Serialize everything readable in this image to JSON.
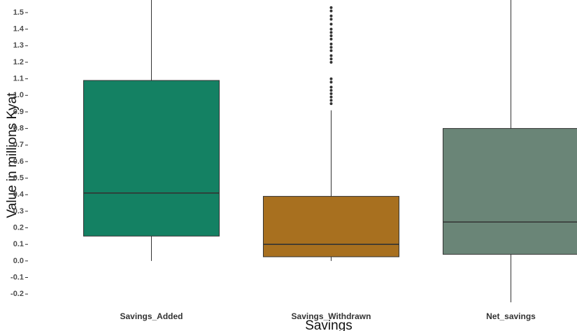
{
  "chart_data": {
    "type": "box",
    "x_label": "Savings",
    "y_label": "Value in millions Kyat",
    "categories": [
      "Savings_Added",
      "Savings_Withdrawn",
      "Net_savings"
    ],
    "colors": [
      "#148163",
      "#a8701f",
      "#6a8577"
    ],
    "boxes": [
      {
        "whislo": 0.0,
        "q1": 0.15,
        "med": 0.41,
        "q3": 1.09,
        "whishi": 1.75,
        "outliers": []
      },
      {
        "whislo": 0.0,
        "q1": 0.025,
        "med": 0.1,
        "q3": 0.39,
        "whishi": 0.91,
        "outliers": [
          0.95,
          0.97,
          0.99,
          1.01,
          1.03,
          1.05,
          1.08,
          1.1,
          1.2,
          1.22,
          1.24,
          1.27,
          1.29,
          1.31,
          1.34,
          1.36,
          1.38,
          1.4,
          1.43,
          1.46,
          1.48,
          1.51,
          1.53
        ]
      },
      {
        "whislo": -0.5,
        "q1": 0.04,
        "med": 0.235,
        "q3": 0.8,
        "whishi": 1.75,
        "outliers": []
      }
    ],
    "ylim": [
      -0.25,
      1.576
    ],
    "yticks": [
      {
        "value": -0.2,
        "label": "-0.2"
      },
      {
        "value": -0.1,
        "label": "-0.1"
      },
      {
        "value": 0.0,
        "label": "0.0"
      },
      {
        "value": 0.1,
        "label": "0.1"
      },
      {
        "value": 0.2,
        "label": "0.2"
      },
      {
        "value": 0.3,
        "label": "0.3"
      },
      {
        "value": 0.4,
        "label": "0.4"
      },
      {
        "value": 0.5,
        "label": "0.5"
      },
      {
        "value": 0.6,
        "label": "0.6"
      },
      {
        "value": 0.7,
        "label": "0.7"
      },
      {
        "value": 0.8,
        "label": "0.8"
      },
      {
        "value": 0.9,
        "label": "0.9"
      },
      {
        "value": 1.0,
        "label": "1.0"
      },
      {
        "value": 1.1,
        "label": "1.1"
      },
      {
        "value": 1.2,
        "label": "1.2"
      },
      {
        "value": 1.3,
        "label": "1.3"
      },
      {
        "value": 1.4,
        "label": "1.4"
      },
      {
        "value": 1.5,
        "label": "1.5"
      }
    ]
  }
}
